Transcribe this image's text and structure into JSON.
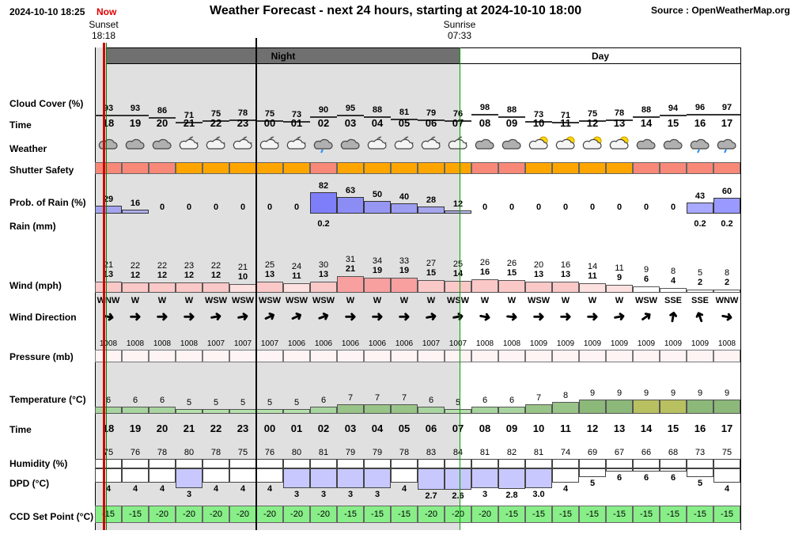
{
  "header": {
    "timestamp": "2024-10-10 18:25",
    "now_label": "Now",
    "title": "Weather Forecast - next 24 hours, starting at 2024-10-10 18:00",
    "source": "Source : OpenWeatherMap.org",
    "sunset_label": "Sunset",
    "sunset_time": "18:18",
    "sunrise_label": "Sunrise",
    "sunrise_time": "07:33",
    "night_label": "Night",
    "day_label": "Day"
  },
  "labels": {
    "cloud_cover": "Cloud Cover (%)",
    "time": "Time",
    "weather": "Weather",
    "shutter": "Shutter Safety",
    "prob_rain": "Prob. of Rain (%)",
    "rain": "Rain (mm)",
    "wind": "Wind (mph)",
    "wind_dir": "Wind Direction",
    "pressure": "Pressure (mb)",
    "temperature": "Temperature (°C)",
    "time2": "Time",
    "humidity": "Humidity (%)",
    "dpd": "DPD (°C)",
    "ccd": "CCD Set Point (°C)"
  },
  "colors": {
    "shutter_unsafe": "#f88878",
    "shutter_marginal": "#ffa500",
    "rain_prob": "#8888ff",
    "ccd": "#88ee88",
    "night_bg": "#e0e0e0",
    "night_bar": "#707070"
  },
  "hours": [
    "18",
    "19",
    "20",
    "21",
    "22",
    "23",
    "00",
    "01",
    "02",
    "03",
    "04",
    "05",
    "06",
    "07",
    "08",
    "09",
    "10",
    "11",
    "12",
    "13",
    "14",
    "15",
    "16",
    "17"
  ],
  "cloud": [
    93,
    93,
    86,
    71,
    75,
    78,
    75,
    73,
    90,
    95,
    88,
    81,
    79,
    76,
    98,
    88,
    73,
    71,
    75,
    78,
    88,
    94,
    96,
    97
  ],
  "weather_icons": [
    "cloud-icon",
    "cloud-icon",
    "cloud-icon",
    "moon-cloud-icon",
    "moon-cloud-icon",
    "moon-cloud-icon",
    "moon-cloud-icon",
    "moon-cloud-icon",
    "rain-cloud-icon",
    "cloud-icon",
    "moon-cloud-icon",
    "moon-cloud-icon",
    "moon-cloud-icon",
    "moon-cloud-icon",
    "cloud-icon",
    "cloud-icon",
    "sun-cloud-icon",
    "sun-cloud-icon",
    "sun-cloud-icon",
    "sun-cloud-icon",
    "cloud-icon",
    "cloud-icon",
    "rain-cloud-icon",
    "rain-cloud-icon"
  ],
  "shutter": [
    "unsafe",
    "unsafe",
    "unsafe",
    "marginal",
    "marginal",
    "marginal",
    "marginal",
    "marginal",
    "unsafe",
    "marginal",
    "marginal",
    "marginal",
    "marginal",
    "marginal",
    "unsafe",
    "unsafe",
    "marginal",
    "marginal",
    "marginal",
    "marginal",
    "unsafe",
    "unsafe",
    "unsafe",
    "unsafe"
  ],
  "prob_rain": [
    29,
    16,
    0,
    0,
    0,
    0,
    0,
    0,
    82,
    63,
    50,
    40,
    28,
    12,
    0,
    0,
    0,
    0,
    0,
    0,
    0,
    0,
    43,
    60
  ],
  "rain_mm": [
    "",
    "",
    "",
    "",
    "",
    "",
    "",
    "",
    "0.2",
    "",
    "",
    "",
    "",
    "",
    "",
    "",
    "",
    "",
    "",
    "",
    "",
    "",
    "0.2",
    "0.2"
  ],
  "wind_gust": [
    21,
    22,
    22,
    23,
    22,
    21,
    25,
    24,
    30,
    31,
    34,
    33,
    27,
    25,
    26,
    26,
    20,
    16,
    14,
    11,
    9,
    8,
    5,
    8
  ],
  "wind_speed": [
    13,
    12,
    12,
    12,
    12,
    10,
    13,
    11,
    13,
    21,
    19,
    19,
    15,
    14,
    16,
    15,
    13,
    13,
    11,
    9,
    6,
    4,
    2,
    2
  ],
  "wind_dir": [
    "WNW",
    "W",
    "W",
    "W",
    "WSW",
    "WSW",
    "WSW",
    "WSW",
    "WSW",
    "W",
    "W",
    "W",
    "W",
    "WSW",
    "W",
    "W",
    "WSW",
    "W",
    "W",
    "W",
    "WSW",
    "SSE",
    "SSE",
    "WNW"
  ],
  "wind_angle": [
    10,
    0,
    0,
    0,
    -10,
    -10,
    -25,
    -25,
    -20,
    0,
    0,
    0,
    -10,
    -10,
    10,
    5,
    0,
    0,
    0,
    -10,
    -35,
    -80,
    -110,
    10
  ],
  "pressure": [
    1008,
    1008,
    1008,
    1008,
    1007,
    1007,
    1007,
    1006,
    1006,
    1006,
    1006,
    1006,
    1007,
    1007,
    1008,
    1008,
    1009,
    1009,
    1009,
    1009,
    1009,
    1009,
    1009,
    1008
  ],
  "temperature": [
    6,
    6,
    6,
    5,
    5,
    5,
    5,
    5,
    6,
    7,
    7,
    7,
    6,
    5,
    6,
    6,
    7,
    8,
    9,
    9,
    9,
    9,
    9,
    9
  ],
  "humidity": [
    75,
    76,
    78,
    80,
    78,
    75,
    76,
    80,
    81,
    79,
    79,
    78,
    83,
    84,
    81,
    82,
    81,
    74,
    69,
    67,
    66,
    68,
    73,
    75
  ],
  "dpd": [
    "4",
    "4",
    "4",
    "3",
    "4",
    "4",
    "4",
    "3",
    "3",
    "3",
    "3",
    "4",
    "2.7",
    "2.6",
    "3",
    "2.8",
    "3.0",
    "4",
    "5",
    "6",
    "6",
    "6",
    "5",
    "4"
  ],
  "ccd": [
    -15,
    -15,
    -20,
    -20,
    -20,
    -20,
    -20,
    -20,
    -20,
    -15,
    -15,
    -15,
    -20,
    -20,
    -20,
    -15,
    -15,
    -15,
    -15,
    -15,
    -15,
    -15,
    -15,
    -15
  ]
}
